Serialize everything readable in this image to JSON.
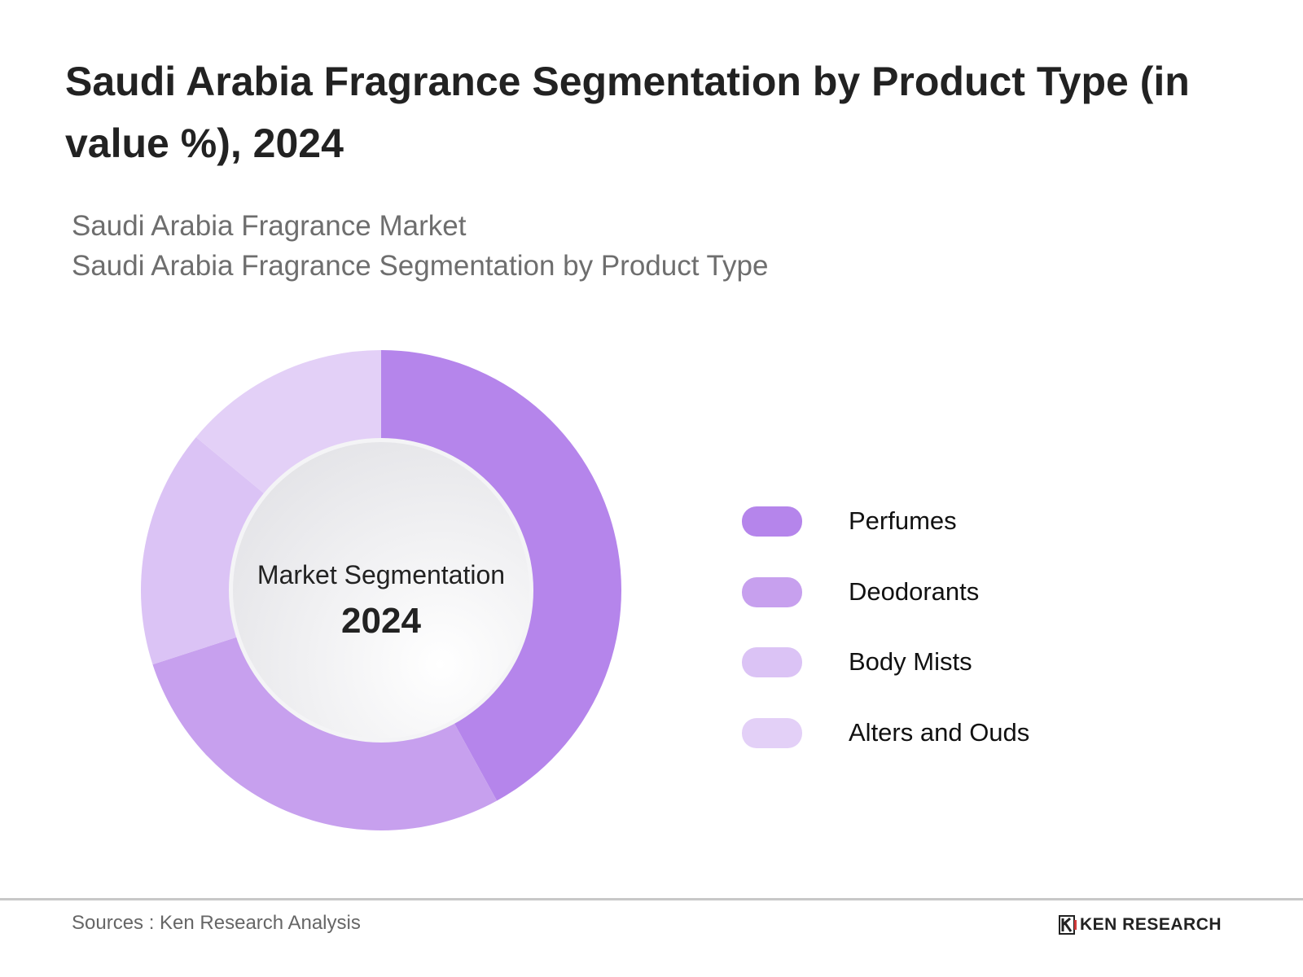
{
  "title": "Saudi Arabia Fragrance Segmentation by Product Type (in value %), 2024",
  "subtitle_1": "Saudi Arabia Fragrance Market",
  "subtitle_2": "Saudi Arabia Fragrance Segmentation by Product Type",
  "chart_data": {
    "type": "pie",
    "variant": "donut",
    "center_label": "Market Segmentation",
    "center_value": "2024",
    "categories": [
      "Perfumes",
      "Deodorants",
      "Body Mists",
      "Alters and Ouds"
    ],
    "values": [
      42,
      28,
      16,
      14
    ],
    "unit": "%",
    "colors": [
      "#b585eb",
      "#c7a0ee",
      "#dbc3f5",
      "#e3d0f7"
    ],
    "legend_position": "right",
    "start_angle": "top, clockwise"
  },
  "footer": {
    "source": "Sources : Ken Research Analysis",
    "logo_text": "KEN RESEARCH"
  }
}
